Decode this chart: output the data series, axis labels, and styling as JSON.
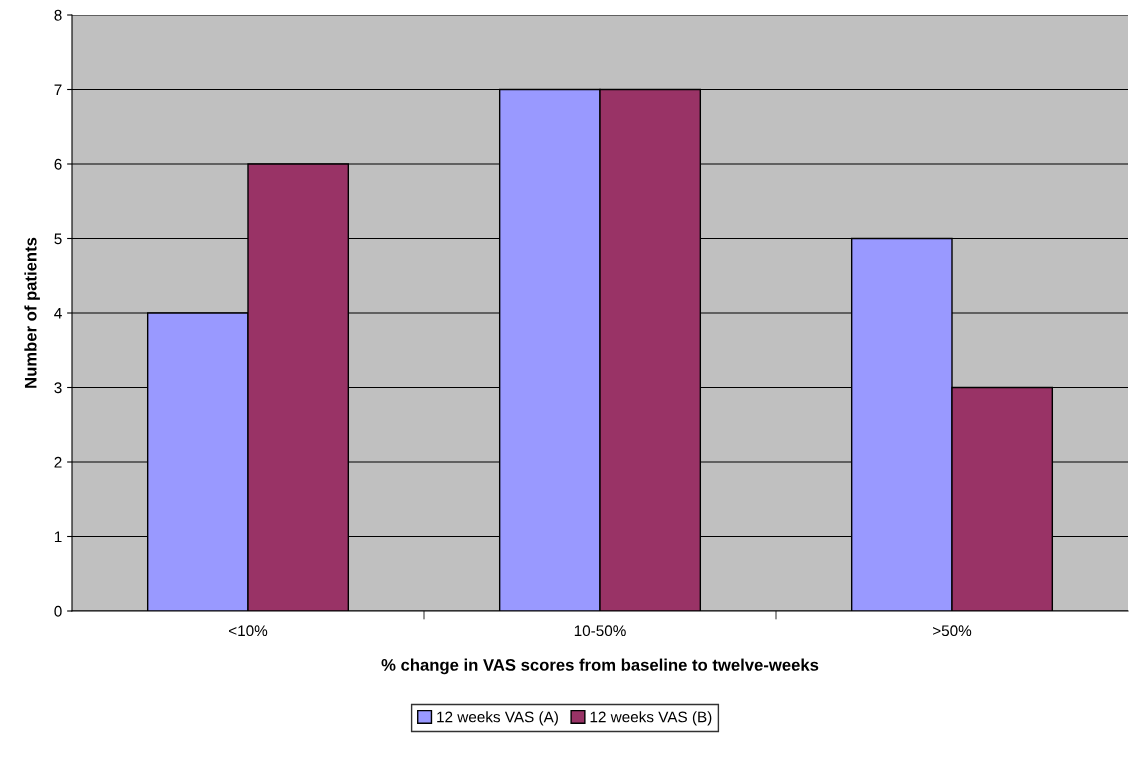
{
  "chart_data": {
    "type": "bar",
    "xlabel": "% change in VAS scores from baseline to twelve-weeks",
    "ylabel": "Number of patients",
    "categories": [
      "<10%",
      "10-50%",
      ">50%"
    ],
    "series": [
      {
        "name": "12 weeks VAS (A)",
        "color": "#9999ff",
        "values": [
          4,
          7,
          5
        ]
      },
      {
        "name": "12 weeks VAS (B)",
        "color": "#993366",
        "values": [
          6,
          7,
          3
        ]
      }
    ],
    "ylim": [
      0,
      8
    ],
    "yticks": [
      0,
      1,
      2,
      3,
      4,
      5,
      6,
      7,
      8
    ],
    "grid": "y",
    "legend": "bottom"
  }
}
